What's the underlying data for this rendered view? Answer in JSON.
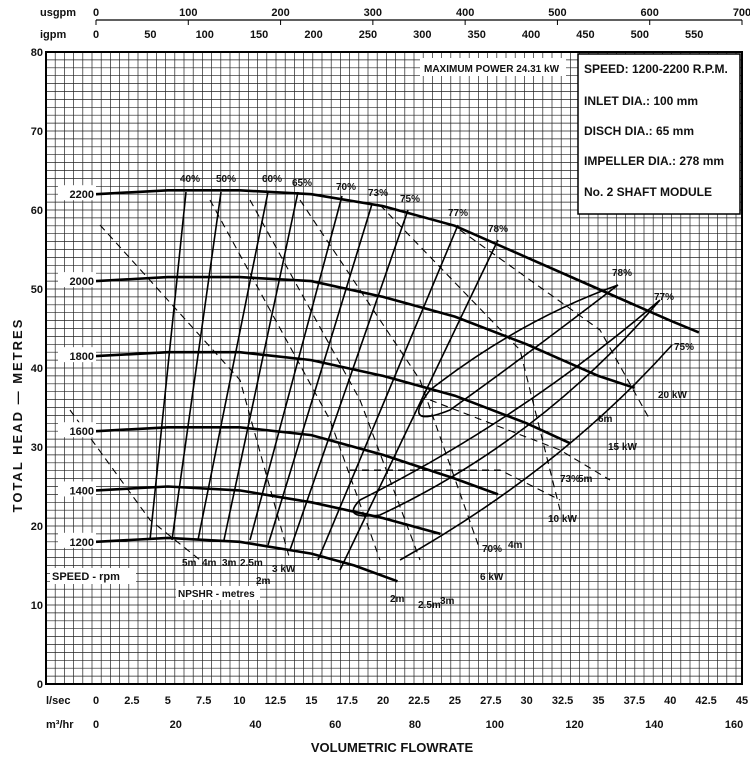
{
  "chart_data": {
    "type": "line",
    "title": "",
    "ylabel": "TOTAL HEAD — METRES",
    "xlabel": "VOLUMETRIC FLOWRATE",
    "ylim": [
      0,
      80
    ],
    "xlim_lsec": [
      0,
      45
    ],
    "grid": true,
    "axes": {
      "usgpm": {
        "label": "usgpm",
        "ticks": [
          0,
          100,
          200,
          300,
          400,
          500,
          600,
          700
        ],
        "max": 700
      },
      "igpm": {
        "label": "igpm",
        "ticks": [
          0,
          50,
          100,
          150,
          200,
          250,
          300,
          350,
          400,
          450,
          500,
          550
        ],
        "max": 594
      },
      "lsec": {
        "label": "l/sec",
        "ticks": [
          0,
          2.5,
          5,
          7.5,
          10,
          12.5,
          15,
          17.5,
          20,
          22.5,
          25,
          27.5,
          30,
          32.5,
          35,
          37.5,
          40,
          42.5,
          45
        ],
        "max": 45
      },
      "m3hr": {
        "label": "m³/hr",
        "ticks": [
          0,
          20,
          40,
          60,
          80,
          100,
          120,
          140,
          160
        ],
        "max": 162
      },
      "y": {
        "ticks": [
          0,
          10,
          20,
          30,
          40,
          50,
          60,
          70,
          80
        ]
      }
    },
    "spec_box": {
      "max_power": "MAXIMUM POWER 24.31 kW",
      "lines": [
        "SPEED: 1200-2200 R.P.M.",
        "INLET DIA.: 100 mm",
        "DISCH DIA.: 65 mm",
        "IMPELLER DIA.: 278 mm",
        "No. 2 SHAFT MODULE"
      ]
    },
    "speed_legend": "SPEED - rpm",
    "npshr_legend": "NPSHR - metres",
    "series": [
      {
        "name": "2200",
        "points": [
          [
            0,
            62
          ],
          [
            5,
            62.5
          ],
          [
            10,
            62.5
          ],
          [
            15,
            62
          ],
          [
            20,
            60.5
          ],
          [
            25,
            58
          ],
          [
            30,
            54
          ],
          [
            35,
            50
          ],
          [
            40,
            46
          ],
          [
            42,
            44.5
          ]
        ]
      },
      {
        "name": "2000",
        "points": [
          [
            0,
            51
          ],
          [
            5,
            51.5
          ],
          [
            10,
            51.5
          ],
          [
            15,
            51
          ],
          [
            20,
            49
          ],
          [
            25,
            46.5
          ],
          [
            30,
            43
          ],
          [
            35,
            39
          ],
          [
            37.5,
            37.5
          ]
        ]
      },
      {
        "name": "1800",
        "points": [
          [
            0,
            41.5
          ],
          [
            5,
            42
          ],
          [
            10,
            42
          ],
          [
            15,
            41
          ],
          [
            20,
            39
          ],
          [
            25,
            36.5
          ],
          [
            30,
            33
          ],
          [
            33,
            30.5
          ]
        ]
      },
      {
        "name": "1600",
        "points": [
          [
            0,
            32
          ],
          [
            5,
            32.5
          ],
          [
            10,
            32.5
          ],
          [
            15,
            31.5
          ],
          [
            20,
            29
          ],
          [
            25,
            26
          ],
          [
            28,
            24
          ]
        ]
      },
      {
        "name": "1400",
        "points": [
          [
            0,
            24.5
          ],
          [
            5,
            25
          ],
          [
            10,
            24.5
          ],
          [
            15,
            23
          ],
          [
            20,
            21
          ],
          [
            24,
            19
          ]
        ]
      },
      {
        "name": "1200",
        "points": [
          [
            0,
            18
          ],
          [
            5,
            18.5
          ],
          [
            10,
            18
          ],
          [
            15,
            16.5
          ],
          [
            18,
            15
          ],
          [
            21,
            13
          ]
        ]
      }
    ],
    "efficiency_labels": [
      "40%",
      "50%",
      "60%",
      "65%",
      "70%",
      "73%",
      "75%",
      "77%",
      "78%",
      "78%",
      "77%",
      "75%",
      "73%",
      "70%"
    ],
    "power_labels": [
      "20 kW",
      "15 kW",
      "10 kW",
      "6 kW",
      "3 kW"
    ],
    "npshr_labels": [
      "5m",
      "4m",
      "3m",
      "2.5m",
      "2m",
      "2m",
      "2.5m",
      "3m",
      "4m",
      "5m",
      "6m"
    ]
  }
}
